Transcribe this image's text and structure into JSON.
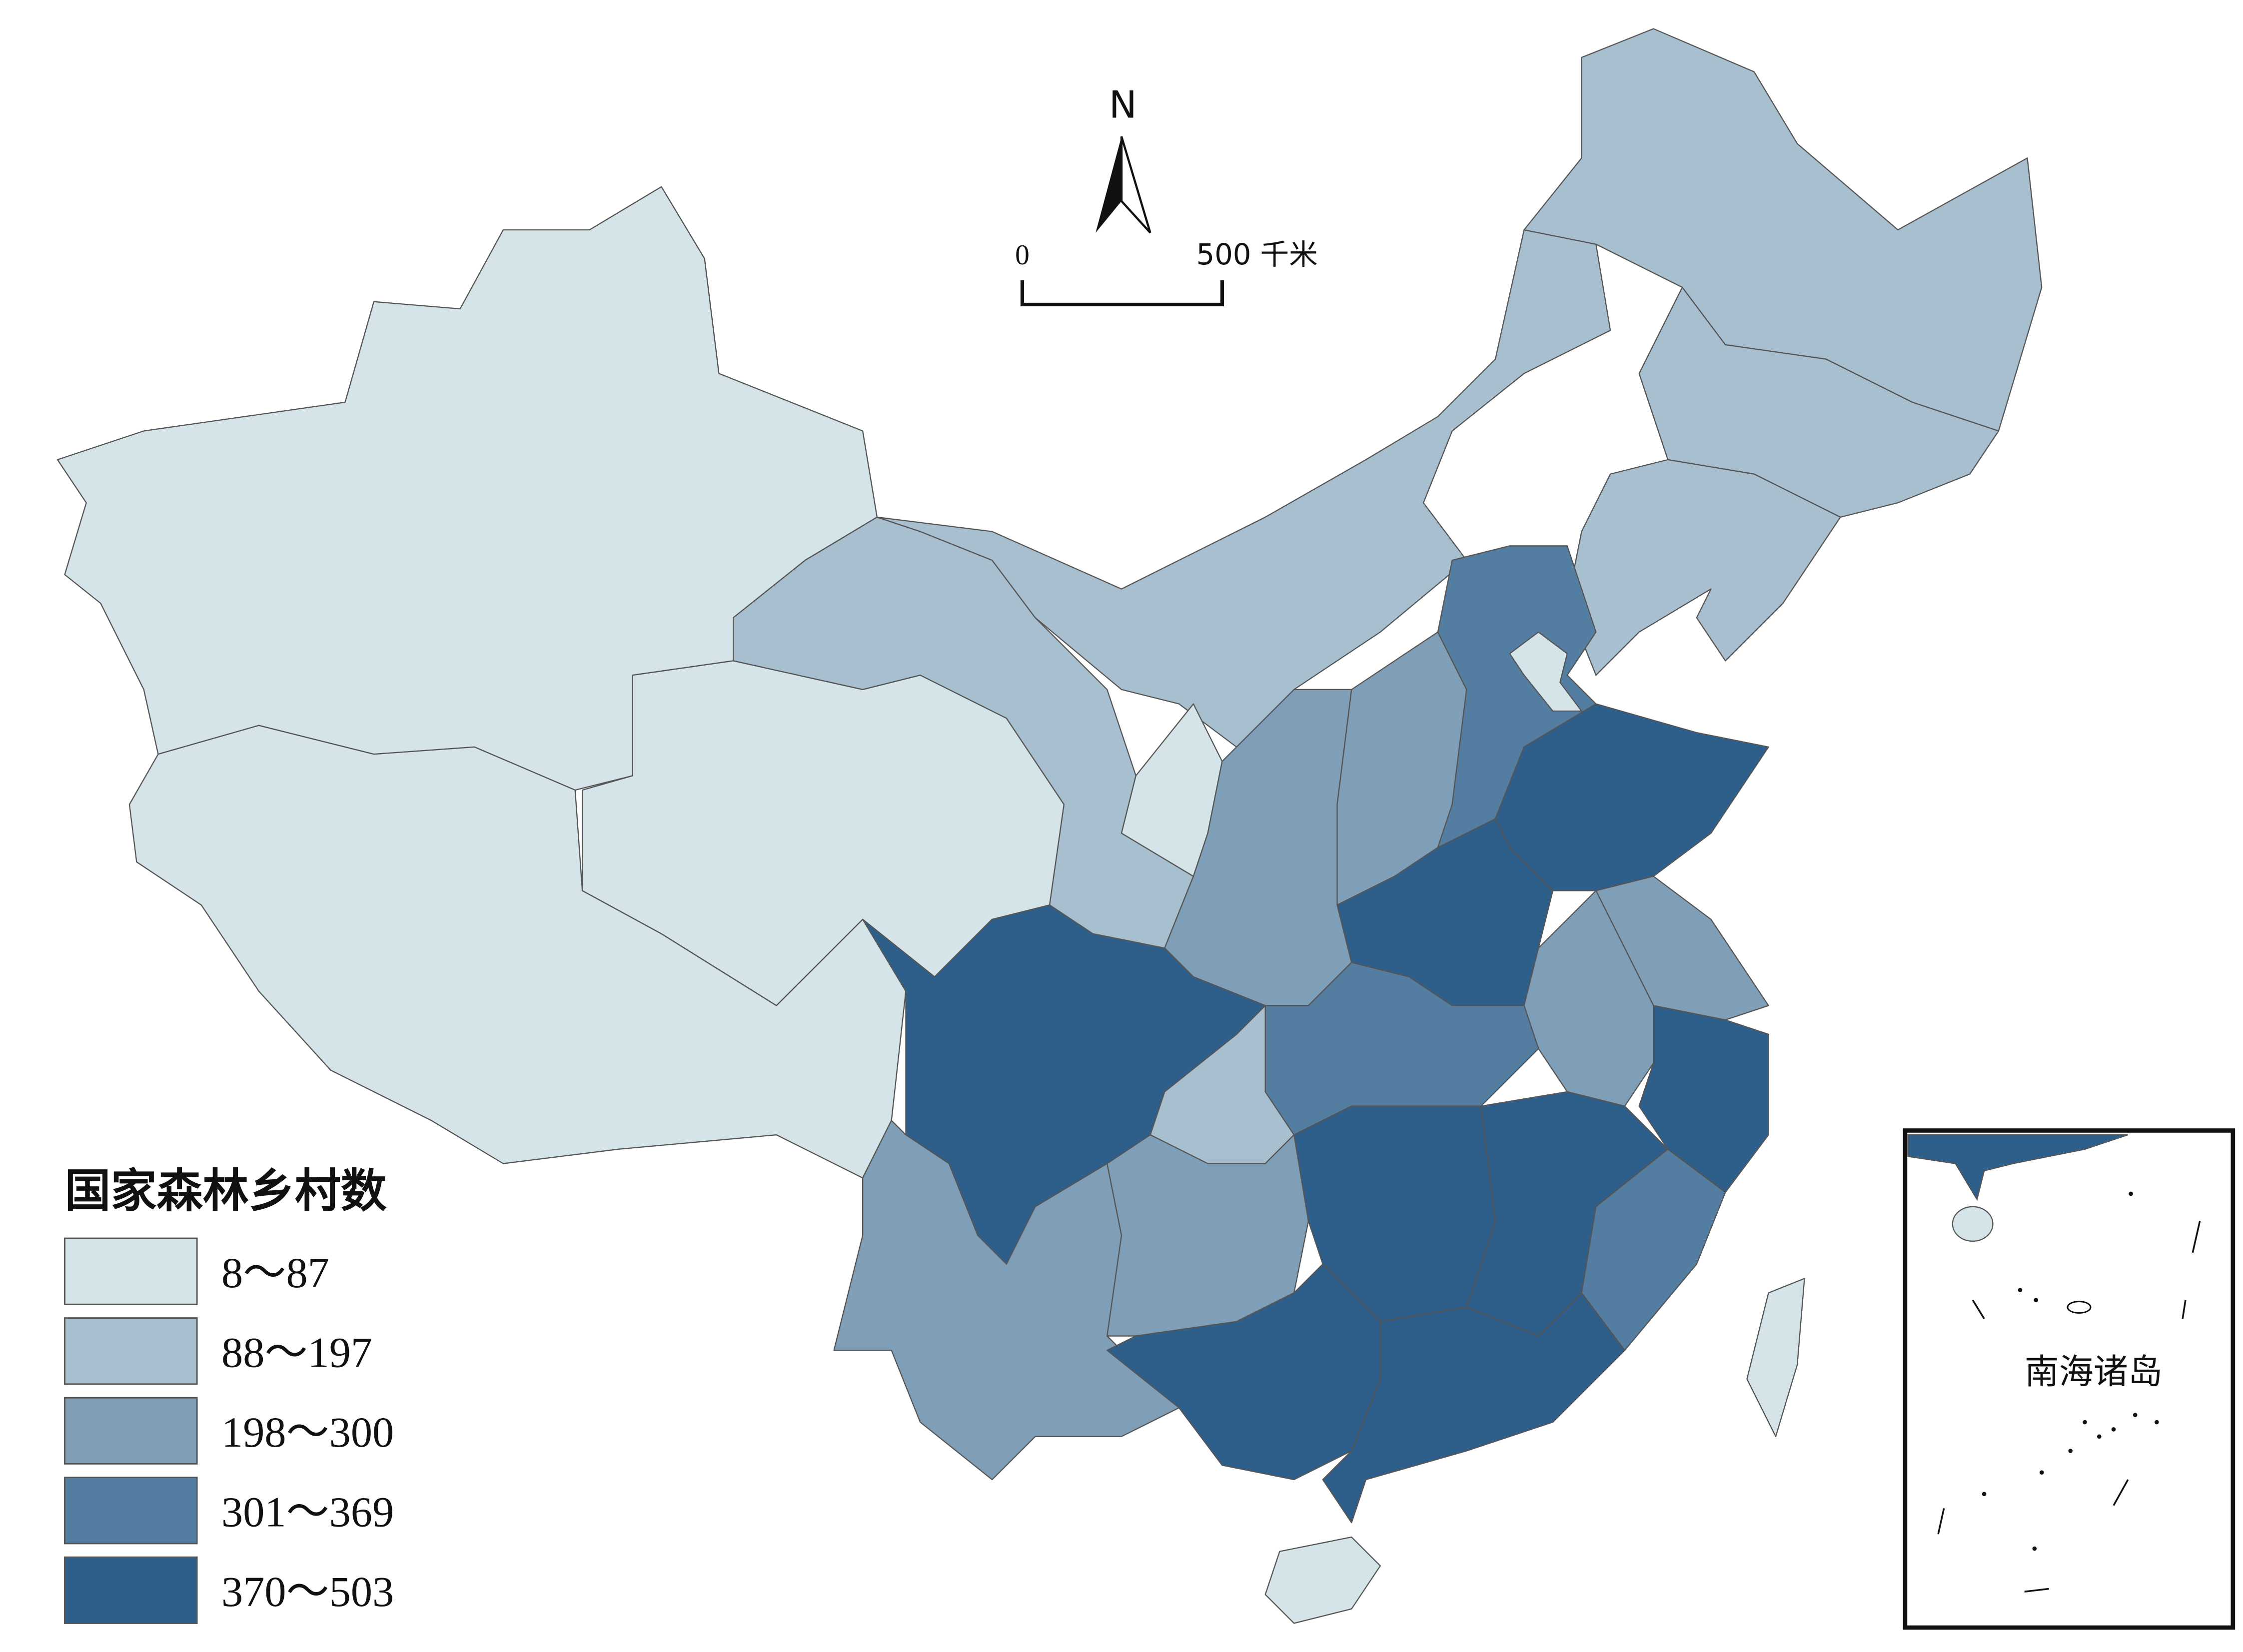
{
  "legend": {
    "title": "国家森林乡村数",
    "items": [
      {
        "label": "8～87",
        "color": "#d4e4e9"
      },
      {
        "label": "88～197",
        "color": "#a7bfcf"
      },
      {
        "label": "198～300",
        "color": "#7f9fb9"
      },
      {
        "label": "301～369",
        "color": "#547ea1"
      },
      {
        "label": "370～503",
        "color": "#2e5f8a"
      }
    ]
  },
  "north_arrow": "N",
  "scale_bar": {
    "start": "0",
    "end": "500 千米"
  },
  "inset": {
    "label": "南海诸岛"
  }
}
